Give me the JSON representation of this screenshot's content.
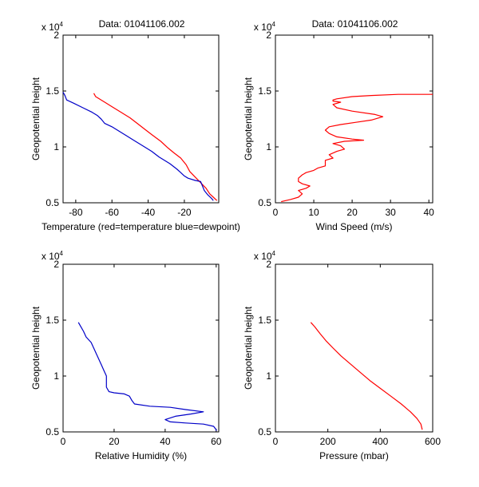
{
  "figure": {
    "background": "#ffffff"
  },
  "chart_data": [
    {
      "type": "line",
      "title": "Data: 01041106.002",
      "xlabel": "Temperature (red=temperature blue=dewpoint)",
      "ylabel": "Geopotential height",
      "y_exponent_label": "x 10",
      "y_exponent_power": "4",
      "xlim": [
        -87,
        -1
      ],
      "ylim": [
        0.5,
        2
      ],
      "xticks": [
        -80,
        -60,
        -40,
        -20
      ],
      "xtick_labels": [
        "-80",
        "-60",
        "-40",
        "-20"
      ],
      "yticks": [
        0.5,
        1,
        1.5,
        2
      ],
      "ytick_labels": [
        "0.5",
        "1",
        "1.5",
        "2"
      ],
      "series": [
        {
          "name": "temperature",
          "color": "#ff0000",
          "points": [
            [
              -70,
              1.48
            ],
            [
              -69,
              1.45
            ],
            [
              -67,
              1.43
            ],
            [
              -64,
              1.4
            ],
            [
              -60,
              1.36
            ],
            [
              -55,
              1.31
            ],
            [
              -50,
              1.26
            ],
            [
              -46,
              1.21
            ],
            [
              -42,
              1.16
            ],
            [
              -38,
              1.11
            ],
            [
              -33,
              1.05
            ],
            [
              -29,
              0.99
            ],
            [
              -26,
              0.95
            ],
            [
              -22,
              0.9
            ],
            [
              -19,
              0.84
            ],
            [
              -17,
              0.78
            ],
            [
              -14,
              0.73
            ],
            [
              -11,
              0.68
            ],
            [
              -8,
              0.63
            ],
            [
              -6,
              0.58
            ],
            [
              -4,
              0.55
            ],
            [
              -2,
              0.52
            ]
          ]
        },
        {
          "name": "dewpoint",
          "color": "#0000c8",
          "points": [
            [
              -87,
              1.49
            ],
            [
              -86,
              1.46
            ],
            [
              -85,
              1.42
            ],
            [
              -81,
              1.39
            ],
            [
              -76,
              1.35
            ],
            [
              -71,
              1.31
            ],
            [
              -68,
              1.28
            ],
            [
              -66,
              1.25
            ],
            [
              -64,
              1.21
            ],
            [
              -60,
              1.18
            ],
            [
              -56,
              1.14
            ],
            [
              -52,
              1.1
            ],
            [
              -48,
              1.06
            ],
            [
              -43,
              1.01
            ],
            [
              -38,
              0.96
            ],
            [
              -34,
              0.91
            ],
            [
              -28,
              0.85
            ],
            [
              -24,
              0.8
            ],
            [
              -22,
              0.77
            ],
            [
              -20,
              0.74
            ],
            [
              -18,
              0.72
            ],
            [
              -14,
              0.7
            ],
            [
              -11,
              0.69
            ],
            [
              -10,
              0.65
            ],
            [
              -9,
              0.61
            ],
            [
              -7,
              0.57
            ],
            [
              -5,
              0.54
            ],
            [
              -4,
              0.52
            ]
          ]
        }
      ]
    },
    {
      "type": "line",
      "title": "Data: 01041106.002",
      "xlabel": "Wind Speed (m/s)",
      "ylabel": "Geopotential height",
      "y_exponent_label": "x 10",
      "y_exponent_power": "4",
      "xlim": [
        0,
        41
      ],
      "ylim": [
        0.5,
        2
      ],
      "xticks": [
        0,
        10,
        20,
        30,
        40
      ],
      "xtick_labels": [
        "0",
        "10",
        "20",
        "30",
        "40"
      ],
      "yticks": [
        0.5,
        1,
        1.5,
        2
      ],
      "ytick_labels": [
        "0.5",
        "1",
        "1.5",
        "2"
      ],
      "series": [
        {
          "name": "wind speed",
          "color": "#ff0000",
          "points": [
            [
              1.5,
              0.51
            ],
            [
              4,
              0.53
            ],
            [
              6,
              0.55
            ],
            [
              7,
              0.58
            ],
            [
              6,
              0.61
            ],
            [
              8,
              0.63
            ],
            [
              9,
              0.65
            ],
            [
              7,
              0.67
            ],
            [
              6,
              0.69
            ],
            [
              6,
              0.72
            ],
            [
              7,
              0.75
            ],
            [
              8,
              0.77
            ],
            [
              10,
              0.79
            ],
            [
              11,
              0.81
            ],
            [
              13,
              0.83
            ],
            [
              13,
              0.86
            ],
            [
              13,
              0.88
            ],
            [
              15,
              0.9
            ],
            [
              14,
              0.93
            ],
            [
              16,
              0.96
            ],
            [
              18,
              0.98
            ],
            [
              17,
              1.01
            ],
            [
              15,
              1.03
            ],
            [
              18,
              1.05
            ],
            [
              23,
              1.06
            ],
            [
              20,
              1.07
            ],
            [
              16,
              1.09
            ],
            [
              14,
              1.12
            ],
            [
              13,
              1.15
            ],
            [
              14,
              1.18
            ],
            [
              17,
              1.2
            ],
            [
              21,
              1.22
            ],
            [
              25,
              1.24
            ],
            [
              28,
              1.27
            ],
            [
              26,
              1.29
            ],
            [
              20,
              1.32
            ],
            [
              16,
              1.35
            ],
            [
              15,
              1.38
            ],
            [
              17,
              1.4
            ],
            [
              15,
              1.41
            ],
            [
              15,
              1.42
            ],
            [
              16,
              1.43
            ],
            [
              20,
              1.45
            ],
            [
              25,
              1.46
            ],
            [
              32,
              1.47
            ],
            [
              41,
              1.47
            ]
          ]
        }
      ]
    },
    {
      "type": "line",
      "title": "",
      "xlabel": "Relative Humidity (%)",
      "ylabel": "Geopotential height",
      "y_exponent_label": "x 10",
      "y_exponent_power": "4",
      "xlim": [
        0,
        61
      ],
      "ylim": [
        0.5,
        2
      ],
      "xticks": [
        0,
        20,
        40,
        60
      ],
      "xtick_labels": [
        "0",
        "20",
        "40",
        "60"
      ],
      "yticks": [
        0.5,
        1,
        1.5,
        2
      ],
      "ytick_labels": [
        "0.5",
        "1",
        "1.5",
        "2"
      ],
      "series": [
        {
          "name": "relative humidity",
          "color": "#0000c8",
          "points": [
            [
              6,
              1.48
            ],
            [
              7,
              1.44
            ],
            [
              8,
              1.4
            ],
            [
              9,
              1.35
            ],
            [
              11,
              1.3
            ],
            [
              12,
              1.25
            ],
            [
              13,
              1.2
            ],
            [
              14,
              1.15
            ],
            [
              15,
              1.1
            ],
            [
              16,
              1.05
            ],
            [
              17,
              1.0
            ],
            [
              17,
              0.95
            ],
            [
              17,
              0.9
            ],
            [
              18,
              0.86
            ],
            [
              20,
              0.85
            ],
            [
              24,
              0.84
            ],
            [
              26,
              0.82
            ],
            [
              27,
              0.78
            ],
            [
              28,
              0.75
            ],
            [
              34,
              0.73
            ],
            [
              42,
              0.72
            ],
            [
              48,
              0.7
            ],
            [
              55,
              0.68
            ],
            [
              50,
              0.66
            ],
            [
              44,
              0.64
            ],
            [
              40,
              0.61
            ],
            [
              42,
              0.59
            ],
            [
              48,
              0.58
            ],
            [
              55,
              0.57
            ],
            [
              59,
              0.55
            ],
            [
              60,
              0.52
            ],
            [
              60,
              0.51
            ]
          ]
        }
      ]
    },
    {
      "type": "line",
      "title": "",
      "xlabel": "Pressure (mbar)",
      "ylabel": "Geopotential height",
      "y_exponent_label": "x 10",
      "y_exponent_power": "4",
      "xlim": [
        0,
        600
      ],
      "ylim": [
        0.5,
        2
      ],
      "xticks": [
        0,
        200,
        400,
        600
      ],
      "xtick_labels": [
        "0",
        "200",
        "400",
        "600"
      ],
      "yticks": [
        0.5,
        1,
        1.5,
        2
      ],
      "ytick_labels": [
        "0.5",
        "1",
        "1.5",
        "2"
      ],
      "series": [
        {
          "name": "pressure",
          "color": "#ff0000",
          "points": [
            [
              135,
              1.48
            ],
            [
              150,
              1.44
            ],
            [
              170,
              1.38
            ],
            [
              195,
              1.31
            ],
            [
              220,
              1.25
            ],
            [
              250,
              1.18
            ],
            [
              280,
              1.12
            ],
            [
              320,
              1.04
            ],
            [
              360,
              0.96
            ],
            [
              400,
              0.89
            ],
            [
              440,
              0.82
            ],
            [
              480,
              0.75
            ],
            [
              515,
              0.68
            ],
            [
              540,
              0.62
            ],
            [
              555,
              0.57
            ],
            [
              560,
              0.52
            ]
          ]
        }
      ]
    }
  ]
}
